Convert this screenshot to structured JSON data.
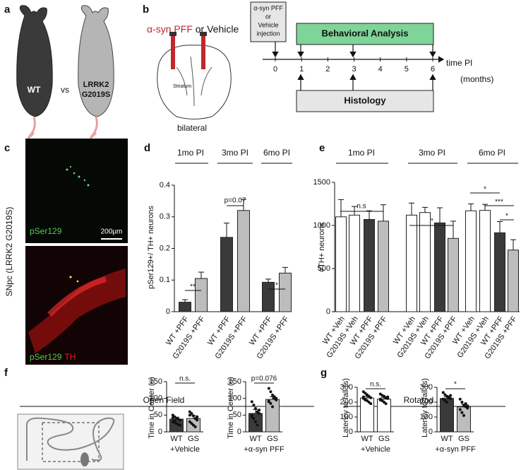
{
  "panel_labels": [
    "a",
    "b",
    "c",
    "d",
    "e",
    "f",
    "g"
  ],
  "panel_a": {
    "control": "WT",
    "versus": "vs",
    "mutant_line1": "LRRK2",
    "mutant_line2": "G2019S"
  },
  "panel_b": {
    "treatment": "α-syn PFF",
    "treatment_alt": " or Vehicle",
    "region": "Striatum",
    "side": "bilateral",
    "injection_box": [
      "α-syn PFF",
      "or",
      "Vehicle",
      "injection"
    ],
    "behavior": "Behavioral Analysis",
    "histology": "Histology",
    "timeline": {
      "ticks": [
        0,
        1,
        2,
        3,
        4,
        5,
        6
      ],
      "lim": [
        0,
        6
      ],
      "label": "time PI",
      "unit": "(months)"
    }
  },
  "panel_c": {
    "side_label": "SNpc (LRRK2 G2019S)",
    "scale": "200µm",
    "top_stain": "pSer129",
    "bottom_stain": "pSer129",
    "bottom_stain2": "TH"
  },
  "section_titles": {
    "f": "Open Field",
    "g": "Rotarod"
  },
  "chart_data": [
    {
      "type": "bar",
      "ylabel": "pSer129+/ TH+ neurons",
      "groups": [
        "1mo PI",
        "3mo PI",
        "6mo PI"
      ],
      "categories": [
        "WT +PFF",
        "G2019S +PFF",
        "WT +PFF",
        "G2019S +PFF",
        "WT +PFF",
        "G2019S +PFF"
      ],
      "values": [
        0.03,
        0.105,
        0.235,
        0.32,
        0.093,
        0.122
      ],
      "errors": [
        0.008,
        0.02,
        0.045,
        0.035,
        0.01,
        0.018
      ],
      "colors": [
        "#3a3a3a",
        "#bdbdbd",
        "#3a3a3a",
        "#bdbdbd",
        "#3a3a3a",
        "#bdbdbd"
      ],
      "ylim": [
        0,
        0.4
      ],
      "yticks": [
        0,
        0.1,
        0.2,
        0.3,
        0.4
      ],
      "annotations": [
        "**",
        "p=0.07",
        "*"
      ]
    },
    {
      "type": "bar",
      "ylabel": "#TH+ neurons",
      "groups": [
        "1mo PI",
        "3mo PI",
        "6mo PI"
      ],
      "categories": [
        "WT +Veh",
        "G2019S +Veh",
        "WT +PFF",
        "G2019S +PFF",
        "WT +Veh",
        "G2019S +Veh",
        "WT +PFF",
        "G2019S +PFF",
        "WT +Veh",
        "G2019S +Veh",
        "WT +PFF",
        "G2019S +PFF"
      ],
      "values": [
        1100,
        1120,
        1070,
        1050,
        1120,
        1150,
        1030,
        850,
        1170,
        1175,
        915,
        715
      ],
      "errors": [
        200,
        100,
        100,
        190,
        140,
        60,
        175,
        200,
        80,
        70,
        130,
        120
      ],
      "colors": [
        "#ffffff",
        "#ffffff",
        "#3a3a3a",
        "#bdbdbd",
        "#ffffff",
        "#ffffff",
        "#3a3a3a",
        "#bdbdbd",
        "#ffffff",
        "#ffffff",
        "#3a3a3a",
        "#bdbdbd"
      ],
      "ylim": [
        0,
        1500
      ],
      "yticks": [
        0,
        500,
        1000,
        1500
      ],
      "annotations": [
        "n.s",
        "*",
        "*",
        "***",
        "*"
      ]
    },
    {
      "type": "bar",
      "ylabel": "Time in Center (s)",
      "xlabel": "+Vehicle",
      "categories": [
        "WT",
        "GS"
      ],
      "values": [
        38,
        40
      ],
      "errors": [
        6,
        8
      ],
      "colors": [
        "#3a3a3a",
        "#bdbdbd"
      ],
      "points": [
        [
          50,
          45,
          40,
          38,
          35,
          30,
          28,
          25,
          22,
          20,
          42,
          33
        ],
        [
          60,
          55,
          48,
          40,
          35,
          30,
          25,
          20,
          15,
          45,
          50
        ]
      ],
      "ylim": [
        0,
        150
      ],
      "yticks": [
        0,
        50,
        100,
        150
      ],
      "annotations": [
        "n.s."
      ]
    },
    {
      "type": "bar",
      "ylabel": "Time in Center (s)",
      "xlabel": "+α-syn PFF",
      "categories": [
        "WT",
        "GS"
      ],
      "values": [
        55,
        97
      ],
      "errors": [
        12,
        8
      ],
      "colors": [
        "#3a3a3a",
        "#bdbdbd"
      ],
      "points": [
        [
          90,
          80,
          70,
          60,
          55,
          45,
          40,
          30,
          20,
          65,
          50
        ],
        [
          130,
          120,
          110,
          100,
          95,
          90,
          85,
          75,
          105,
          100,
          92
        ]
      ],
      "ylim": [
        0,
        150
      ],
      "yticks": [
        0,
        50,
        100,
        150
      ],
      "annotations": [
        "p=0.076"
      ]
    },
    {
      "type": "bar",
      "ylabel": "Latency to fall (s)",
      "xlabel": "+Vehicle",
      "categories": [
        "WT",
        "GS"
      ],
      "values": [
        228,
        220
      ],
      "errors": [
        12,
        10
      ],
      "colors": [
        "#ffffff",
        "#ffffff"
      ],
      "points": [
        [
          270,
          260,
          250,
          240,
          230,
          225,
          220,
          210,
          200,
          190,
          235,
          215,
          245
        ],
        [
          255,
          245,
          240,
          230,
          225,
          220,
          210,
          200,
          190,
          235,
          215
        ]
      ],
      "ylim": [
        0,
        300
      ],
      "yticks": [
        0,
        100,
        200,
        300
      ],
      "annotations": [
        "n.s."
      ]
    },
    {
      "type": "bar",
      "ylabel": "Latency to fall (s)",
      "xlabel": "+α-syn PFF",
      "categories": [
        "WT",
        "GS"
      ],
      "values": [
        225,
        168
      ],
      "errors": [
        10,
        18
      ],
      "colors": [
        "#3a3a3a",
        "#bdbdbd"
      ],
      "points": [
        [
          265,
          250,
          240,
          230,
          225,
          220,
          210,
          200,
          235,
          245
        ],
        [
          220,
          200,
          180,
          170,
          160,
          150,
          130,
          110,
          190,
          175
        ]
      ],
      "ylim": [
        0,
        300
      ],
      "yticks": [
        0,
        100,
        200,
        300
      ],
      "annotations": [
        "*"
      ]
    }
  ]
}
